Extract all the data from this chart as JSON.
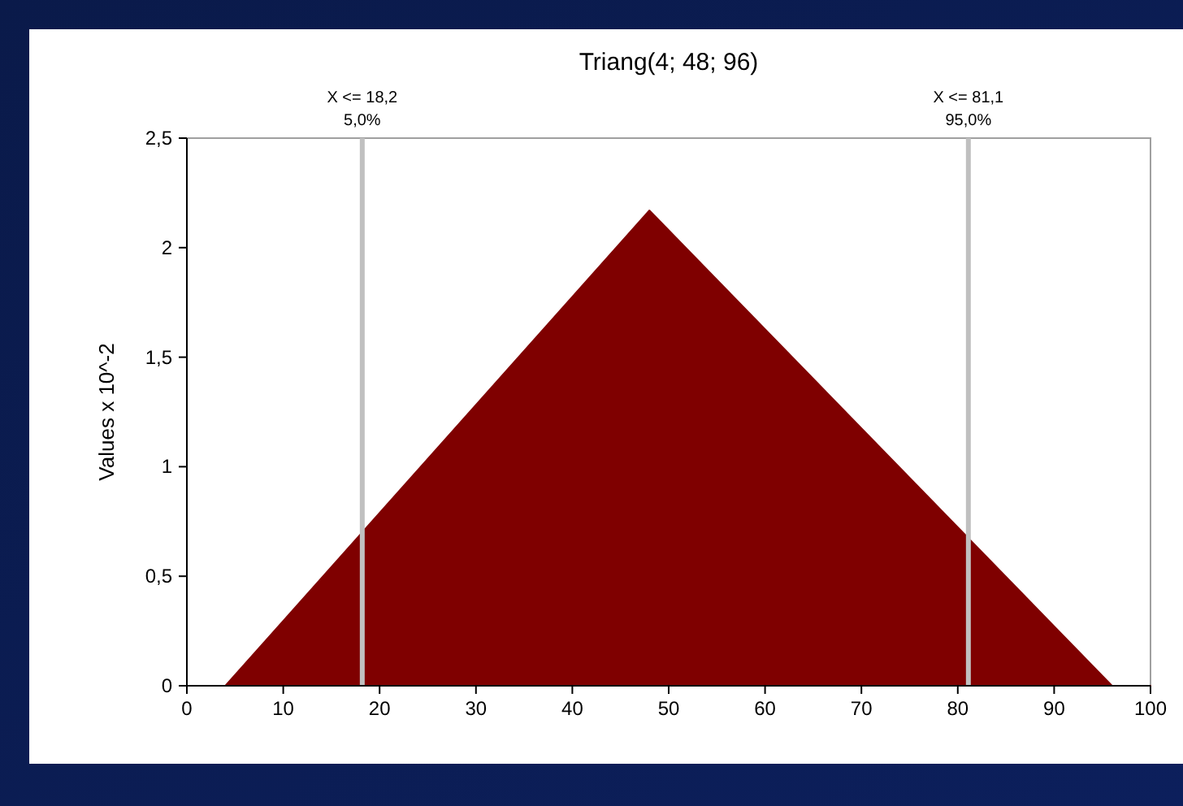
{
  "chart_data": {
    "type": "area",
    "title": "Triang(4; 48; 96)",
    "ylabel": "Values x 10^-2",
    "x": [
      0,
      4,
      48,
      96,
      100
    ],
    "series": [
      {
        "color": "#7f0000",
        "values": [
          0,
          0,
          2.17,
          0,
          0
        ]
      }
    ],
    "xlim": [
      0,
      100
    ],
    "xticks": [
      0,
      10,
      20,
      30,
      40,
      50,
      60,
      70,
      80,
      90,
      100
    ],
    "ylim": [
      0,
      2.5
    ],
    "yticks": [
      0,
      {
        "value": 0.5,
        "label": "0,5"
      },
      1,
      {
        "value": 1.5,
        "label": "1,5"
      },
      2,
      {
        "value": 2.5,
        "label": "2,5"
      }
    ],
    "ref_lines": [
      {
        "axis": "x",
        "value": 18.2,
        "label": "X <= 18,2\n5,0%",
        "color": "#c0c0c0"
      },
      {
        "axis": "x",
        "value": 81.1,
        "label": "X <= 81,1\n95,0%",
        "color": "#c0c0c0"
      }
    ],
    "grid": false
  }
}
